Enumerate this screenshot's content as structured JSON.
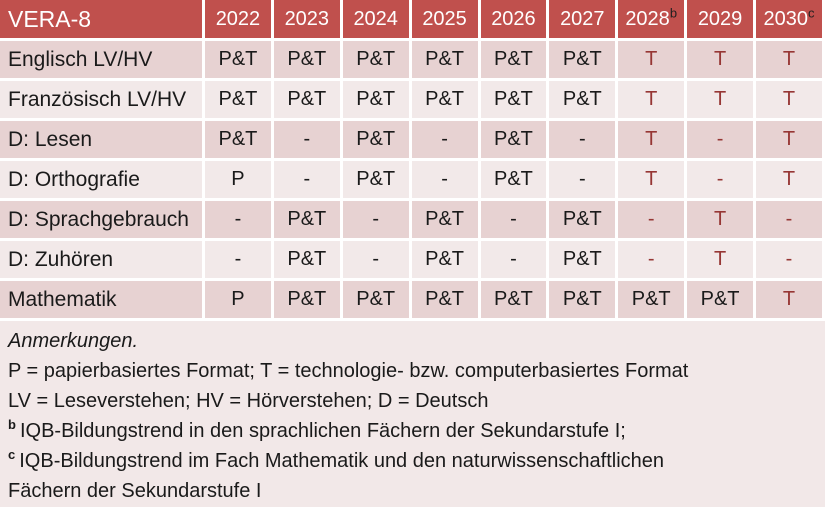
{
  "table": {
    "title": "VERA-8",
    "columns": [
      {
        "label": "2022",
        "sup": ""
      },
      {
        "label": "2023",
        "sup": ""
      },
      {
        "label": "2024",
        "sup": ""
      },
      {
        "label": "2025",
        "sup": ""
      },
      {
        "label": "2026",
        "sup": ""
      },
      {
        "label": "2027",
        "sup": ""
      },
      {
        "label": "2028",
        "sup": "b"
      },
      {
        "label": "2029",
        "sup": ""
      },
      {
        "label": "2030",
        "sup": "c"
      }
    ],
    "rows": [
      {
        "label": "Englisch LV/HV",
        "cells": [
          {
            "text": "P&T"
          },
          {
            "text": "P&T"
          },
          {
            "text": "P&T"
          },
          {
            "text": "P&T"
          },
          {
            "text": "P&T"
          },
          {
            "text": "P&T"
          },
          {
            "text": "T",
            "red": true
          },
          {
            "text": "T",
            "red": true
          },
          {
            "text": "T",
            "red": true
          }
        ]
      },
      {
        "label": "Französisch LV/HV",
        "cells": [
          {
            "text": "P&T"
          },
          {
            "text": "P&T"
          },
          {
            "text": "P&T"
          },
          {
            "text": "P&T"
          },
          {
            "text": "P&T"
          },
          {
            "text": "P&T"
          },
          {
            "text": "T",
            "red": true
          },
          {
            "text": "T",
            "red": true
          },
          {
            "text": "T",
            "red": true
          }
        ]
      },
      {
        "label": "D: Lesen",
        "cells": [
          {
            "text": "P&T"
          },
          {
            "text": "-"
          },
          {
            "text": "P&T"
          },
          {
            "text": "-"
          },
          {
            "text": "P&T"
          },
          {
            "text": "-"
          },
          {
            "text": "T",
            "red": true
          },
          {
            "text": "-",
            "red": true
          },
          {
            "text": "T",
            "red": true
          }
        ]
      },
      {
        "label": "D: Orthografie",
        "cells": [
          {
            "text": "P"
          },
          {
            "text": "-"
          },
          {
            "text": "P&T"
          },
          {
            "text": "-"
          },
          {
            "text": "P&T"
          },
          {
            "text": "-"
          },
          {
            "text": "T",
            "red": true
          },
          {
            "text": "-",
            "red": true
          },
          {
            "text": "T",
            "red": true
          }
        ]
      },
      {
        "label": "D: Sprachgebrauch",
        "cells": [
          {
            "text": "-"
          },
          {
            "text": "P&T"
          },
          {
            "text": "-"
          },
          {
            "text": "P&T"
          },
          {
            "text": "-"
          },
          {
            "text": "P&T"
          },
          {
            "text": "-",
            "red": true
          },
          {
            "text": "T",
            "red": true
          },
          {
            "text": "-",
            "red": true
          }
        ]
      },
      {
        "label": "D: Zuhören",
        "cells": [
          {
            "text": "-"
          },
          {
            "text": "P&T"
          },
          {
            "text": "-"
          },
          {
            "text": "P&T"
          },
          {
            "text": "-"
          },
          {
            "text": "P&T"
          },
          {
            "text": "-",
            "red": true
          },
          {
            "text": "T",
            "red": true
          },
          {
            "text": "-",
            "red": true
          }
        ]
      },
      {
        "label": "Mathematik",
        "cells": [
          {
            "text": "P"
          },
          {
            "text": "P&T"
          },
          {
            "text": "P&T"
          },
          {
            "text": "P&T"
          },
          {
            "text": "P&T"
          },
          {
            "text": "P&T"
          },
          {
            "text": "P&T"
          },
          {
            "text": "P&T"
          },
          {
            "text": "T",
            "red": true
          }
        ]
      }
    ]
  },
  "notes": {
    "heading": "Anmerkungen.",
    "lines": [
      {
        "sup": "",
        "text": "P = papierbasiertes Format; T = technologie- bzw. computerbasiertes Format"
      },
      {
        "sup": "",
        "text": "LV = Leseverstehen; HV = Hörverstehen; D = Deutsch"
      },
      {
        "sup": "b",
        "text": "IQB-Bildungstrend in den sprachlichen Fächern der Sekundarstufe I;"
      },
      {
        "sup": "c",
        "text": "IQB-Bildungstrend im Fach Mathematik und den naturwissenschaftlichen\nFächern der Sekundarstufe I"
      }
    ]
  },
  "colors": {
    "header_bg": "#C0504D",
    "row_odd_bg": "#E7D2D2",
    "row_even_bg": "#F2E9E9",
    "notes_bg": "#F2E8E8",
    "accent_text": "#963634",
    "header_text": "#FFFFFF",
    "body_text": "#1A1A1A",
    "grid_line": "#FFFFFF"
  }
}
